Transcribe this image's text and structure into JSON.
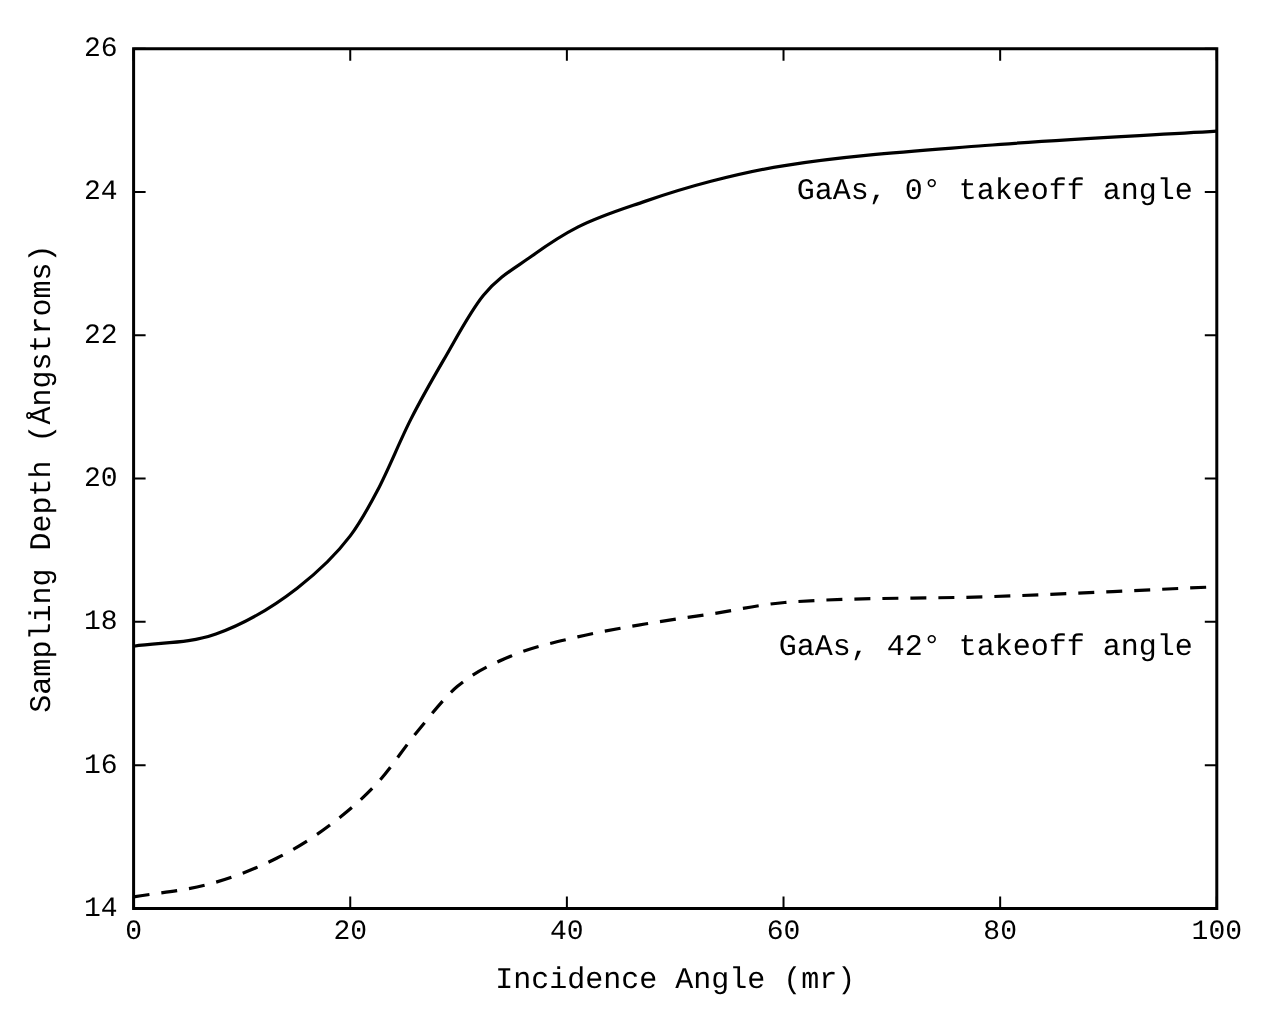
{
  "chart_data": {
    "type": "line",
    "xlabel": "Incidence Angle (mr)",
    "ylabel": "Sampling Depth (Ångstroms)",
    "xlim": [
      0,
      100
    ],
    "ylim": [
      14,
      26
    ],
    "xticks": [
      0,
      20,
      40,
      60,
      80,
      100
    ],
    "yticks": [
      14,
      16,
      18,
      20,
      22,
      24,
      26
    ],
    "grid": false,
    "legend": "right",
    "marker": "none",
    "series": [
      {
        "name": "GaAs, 0° takeoff angle",
        "color": "#000000",
        "line_style": "solid",
        "x": [
          0,
          7.6,
          15.1,
          20,
          22.5,
          25.6,
          28.6,
          32.3,
          36.7,
          41,
          47.2,
          53.3,
          60.1,
          78.6,
          100
        ],
        "values": [
          17.66,
          17.83,
          18.47,
          19.2,
          19.83,
          20.83,
          21.65,
          22.56,
          23.1,
          23.51,
          23.87,
          24.15,
          24.37,
          24.65,
          24.85
        ]
      },
      {
        "name": "GaAs, 42° takeoff angle",
        "color": "#000000",
        "line_style": "dashed",
        "x": [
          0,
          7,
          13.2,
          18.1,
          22.5,
          26.2,
          29.9,
          34.8,
          41,
          47.2,
          53.3,
          60.1,
          78.6,
          100
        ],
        "values": [
          14.16,
          14.34,
          14.7,
          15.16,
          15.75,
          16.47,
          17.1,
          17.52,
          17.79,
          17.97,
          18.11,
          18.27,
          18.35,
          18.49
        ]
      }
    ]
  }
}
